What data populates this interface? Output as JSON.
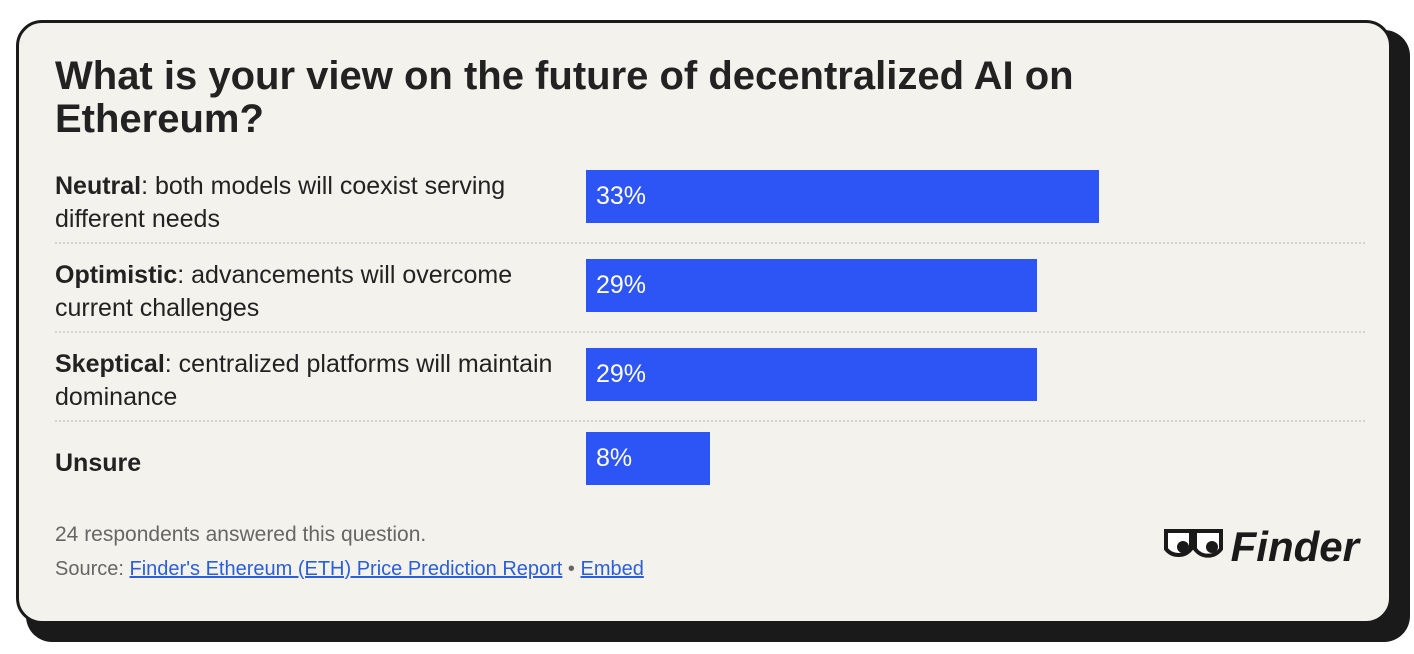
{
  "chart_data": {
    "type": "bar",
    "orientation": "horizontal",
    "title": "What is your view on the future of decentralized AI on Ethereum?",
    "categories": [
      {
        "term": "Neutral",
        "detail": ": both models will coexist serving different needs"
      },
      {
        "term": "Optimistic",
        "detail": ": advancements will overcome current challenges"
      },
      {
        "term": "Skeptical",
        "detail": ": centralized platforms will maintain dominance"
      },
      {
        "term": "Unsure"
      }
    ],
    "values": [
      33,
      29,
      29,
      8
    ],
    "value_labels": [
      "33%",
      "29%",
      "29%",
      "8%"
    ],
    "color": "#2d55f5",
    "note": "24 respondents answered this question.",
    "source_label": "Source:",
    "source_link": "Finder's Ethereum (ETH) Price Prediction Report",
    "separator": "•",
    "embed": "Embed",
    "logo": "Finder"
  }
}
